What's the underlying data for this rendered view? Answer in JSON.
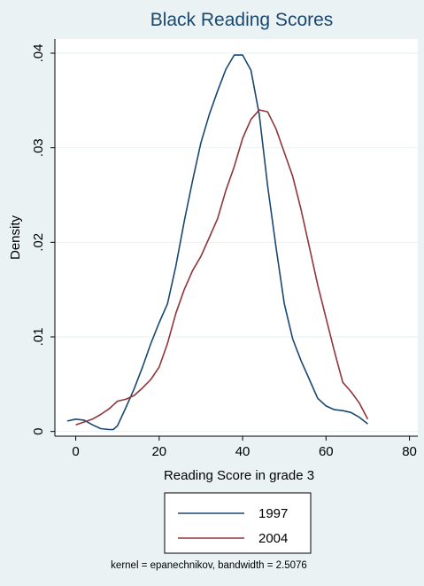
{
  "chart_data": {
    "type": "line",
    "title": "Black Reading Scores",
    "xlabel": "Reading Score in grade 3",
    "ylabel": "Density",
    "xlim": [
      -5,
      82
    ],
    "ylim": [
      -0.0005,
      0.0415
    ],
    "x_ticks": [
      0,
      20,
      40,
      60,
      80
    ],
    "x_tick_labels": [
      "0",
      "20",
      "40",
      "60",
      "80"
    ],
    "y_ticks": [
      0,
      0.01,
      0.02,
      0.03,
      0.04
    ],
    "y_tick_labels": [
      "0",
      ".01",
      ".02",
      ".03",
      ".04"
    ],
    "grid": "horizontal",
    "legend_position": "bottom",
    "note": "kernel = epanechnikov, bandwidth = 2.5076",
    "series": [
      {
        "name": "1997",
        "color": "#1a476f",
        "x": [
          -2,
          0,
          2,
          4,
          6,
          8,
          9,
          10,
          12,
          14,
          16,
          18,
          20,
          22,
          24,
          26,
          28,
          30,
          32,
          34,
          36,
          38,
          40,
          42,
          44,
          46,
          48,
          50,
          52,
          54,
          56,
          58,
          60,
          62,
          64,
          66,
          68,
          70
        ],
        "y": [
          0.0011,
          0.0013,
          0.0012,
          0.0007,
          0.0003,
          0.0002,
          0.0002,
          0.0006,
          0.0025,
          0.0045,
          0.0068,
          0.0093,
          0.0115,
          0.0135,
          0.0175,
          0.0222,
          0.0265,
          0.0305,
          0.0335,
          0.036,
          0.0383,
          0.0398,
          0.0398,
          0.0382,
          0.0335,
          0.026,
          0.0195,
          0.0135,
          0.0098,
          0.0075,
          0.0055,
          0.0035,
          0.0027,
          0.0023,
          0.0022,
          0.002,
          0.0015,
          0.0008
        ]
      },
      {
        "name": "2004",
        "color": "#90353b",
        "x": [
          0,
          2,
          4,
          6,
          8,
          10,
          12,
          14,
          16,
          18,
          20,
          22,
          24,
          26,
          28,
          30,
          32,
          34,
          36,
          38,
          40,
          42,
          44,
          46,
          48,
          50,
          52,
          54,
          56,
          58,
          60,
          62,
          64,
          66,
          68,
          70
        ],
        "y": [
          0.0007,
          0.001,
          0.0013,
          0.0018,
          0.0024,
          0.0032,
          0.0034,
          0.0038,
          0.0046,
          0.0055,
          0.0068,
          0.0093,
          0.0125,
          0.015,
          0.017,
          0.0185,
          0.0205,
          0.0225,
          0.0255,
          0.028,
          0.031,
          0.033,
          0.034,
          0.0338,
          0.032,
          0.0295,
          0.027,
          0.0235,
          0.0195,
          0.0155,
          0.012,
          0.0085,
          0.0052,
          0.0042,
          0.003,
          0.0013
        ]
      }
    ]
  }
}
